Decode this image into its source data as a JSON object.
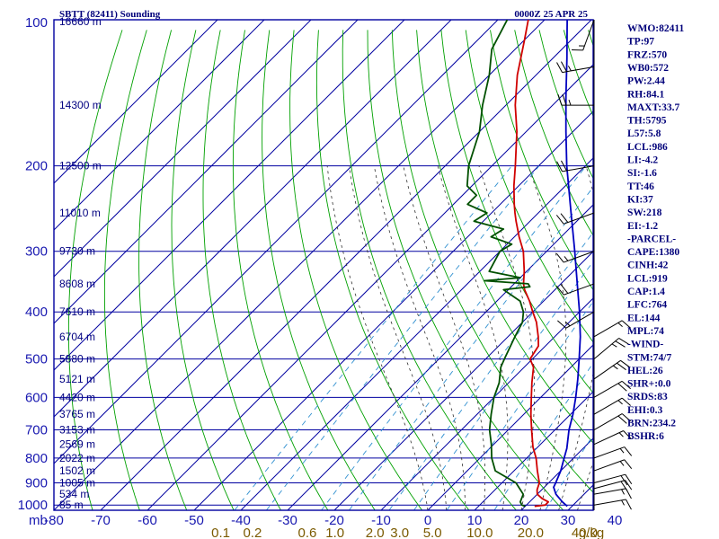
{
  "header": {
    "station": "SBTT (82411) Sounding",
    "time": "0000Z 25 APR 25"
  },
  "indices": [
    "WMO:82411",
    "TP:97",
    "FRZ:570",
    "WB0:572",
    "PW:2.44",
    "RH:84.1",
    "MAXT:33.7",
    "TH:5795",
    "L57:5.8",
    "LCL:986",
    "LI:-4.2",
    "SI:-1.6",
    "TT:46",
    "KI:37",
    "SW:218",
    "EI:-1.2",
    "-PARCEL-",
    "CAPE:1380",
    "CINH:42",
    "LCL:919",
    "CAP:1.4",
    "LFC:764",
    "EL:144",
    "MPL:74",
    "-WIND-",
    "STM:74/7",
    "HEL:26",
    "SHR+:0.0",
    "SRDS:83",
    "EHI:0.3",
    "BRN:234.2",
    "BSHR:6"
  ],
  "colors": {
    "isobar": "#0000a0",
    "isotherm": "#0000a0",
    "dry_adiabat": "#00a000",
    "moist_adiabat": "#303030",
    "mixing_ratio": "#3090d0",
    "temperature": "#d00000",
    "dewpoint": "#005000",
    "parcel": "#0000c0",
    "wind_barb": "#000000"
  },
  "chart_data": {
    "type": "skew-t log-p sounding",
    "x_axis_unit_label": "mb",
    "temperature_ticks": [
      -80,
      -70,
      -60,
      -50,
      -40,
      -30,
      -20,
      -10,
      0,
      10,
      20,
      30,
      40
    ],
    "temperature_tick_labels": [
      "-80",
      "-70",
      "-60",
      "-50",
      "-40",
      "-30",
      "-20",
      "-10",
      "0",
      "10",
      "20",
      "30",
      "40"
    ],
    "pressure_levels": [
      100,
      200,
      300,
      400,
      500,
      600,
      700,
      800,
      900,
      1000
    ],
    "pressure_labels": [
      "100",
      "200",
      "300",
      "400",
      "500",
      "600",
      "700",
      "800",
      "900",
      "1000"
    ],
    "height_labels": [
      {
        "p": 100,
        "label": "16660 m"
      },
      {
        "p": 150,
        "label": "14300 m"
      },
      {
        "p": 200,
        "label": "12500 m"
      },
      {
        "p": 250,
        "label": "11010 m"
      },
      {
        "p": 300,
        "label": "9730 m"
      },
      {
        "p": 350,
        "label": "8608 m"
      },
      {
        "p": 400,
        "label": "7610 m"
      },
      {
        "p": 450,
        "label": "6704 m"
      },
      {
        "p": 500,
        "label": "5880 m"
      },
      {
        "p": 550,
        "label": "5121 m"
      },
      {
        "p": 600,
        "label": "4420 m"
      },
      {
        "p": 650,
        "label": "3765 m"
      },
      {
        "p": 700,
        "label": "3153 m"
      },
      {
        "p": 750,
        "label": "2569 m"
      },
      {
        "p": 800,
        "label": "2022 m"
      },
      {
        "p": 850,
        "label": "1502 m"
      },
      {
        "p": 900,
        "label": "1005 m"
      },
      {
        "p": 950,
        "label": "534 m"
      },
      {
        "p": 1000,
        "label": "85 m"
      }
    ],
    "mixing_ratio_labels": [
      "0.1",
      "0.2",
      "0.6",
      "1.0",
      "2.0",
      "3.0",
      "5.0",
      "10.0",
      "20.0",
      "40.0"
    ],
    "mixing_ratio_unit": "g/kg",
    "series": [
      {
        "key": "temperature",
        "points": [
          [
            1006,
            22
          ],
          [
            1000,
            24
          ],
          [
            985,
            24
          ],
          [
            970,
            22
          ],
          [
            950,
            20
          ],
          [
            930,
            19
          ],
          [
            900,
            18
          ],
          [
            850,
            15
          ],
          [
            800,
            12
          ],
          [
            760,
            9
          ],
          [
            700,
            5
          ],
          [
            650,
            1.5
          ],
          [
            600,
            -2
          ],
          [
            560,
            -5
          ],
          [
            520,
            -8
          ],
          [
            500,
            -10.5
          ],
          [
            470,
            -11.5
          ],
          [
            450,
            -13.5
          ],
          [
            420,
            -17
          ],
          [
            400,
            -20
          ],
          [
            380,
            -23
          ],
          [
            360,
            -26.5
          ],
          [
            350,
            -28
          ],
          [
            330,
            -30.5
          ],
          [
            300,
            -35
          ],
          [
            280,
            -39
          ],
          [
            260,
            -43
          ],
          [
            250,
            -45
          ],
          [
            240,
            -47
          ],
          [
            220,
            -51
          ],
          [
            200,
            -55
          ],
          [
            170,
            -62
          ],
          [
            150,
            -68
          ],
          [
            130,
            -74
          ],
          [
            110,
            -80
          ],
          [
            100,
            -83.5
          ]
        ]
      },
      {
        "key": "dewpoint",
        "points": [
          [
            1006,
            20
          ],
          [
            1000,
            19
          ],
          [
            985,
            18
          ],
          [
            950,
            17
          ],
          [
            900,
            13
          ],
          [
            850,
            6
          ],
          [
            800,
            2.5
          ],
          [
            750,
            -0.5
          ],
          [
            700,
            -4
          ],
          [
            650,
            -7
          ],
          [
            600,
            -10
          ],
          [
            560,
            -12
          ],
          [
            520,
            -15
          ],
          [
            500,
            -16
          ],
          [
            450,
            -18.5
          ],
          [
            420,
            -20
          ],
          [
            400,
            -22
          ],
          [
            380,
            -25
          ],
          [
            360,
            -31
          ],
          [
            355,
            -26
          ],
          [
            350,
            -27
          ],
          [
            345,
            -37
          ],
          [
            340,
            -30
          ],
          [
            330,
            -38
          ],
          [
            300,
            -40
          ],
          [
            290,
            -39
          ],
          [
            280,
            -45
          ],
          [
            270,
            -44
          ],
          [
            260,
            -52
          ],
          [
            250,
            -51
          ],
          [
            240,
            -57
          ],
          [
            230,
            -57
          ],
          [
            220,
            -61
          ],
          [
            200,
            -65
          ],
          [
            170,
            -70
          ],
          [
            150,
            -75
          ],
          [
            130,
            -80
          ],
          [
            115,
            -85
          ],
          [
            100,
            -88
          ]
        ]
      },
      {
        "key": "parcel",
        "points": [
          [
            1006,
            29
          ],
          [
            985,
            27
          ],
          [
            950,
            24
          ],
          [
            919,
            22
          ],
          [
            900,
            21.5
          ],
          [
            850,
            20
          ],
          [
            800,
            18
          ],
          [
            764,
            16.5
          ],
          [
            700,
            13
          ],
          [
            650,
            10.5
          ],
          [
            600,
            7.5
          ],
          [
            550,
            4
          ],
          [
            500,
            0
          ],
          [
            450,
            -4.5
          ],
          [
            400,
            -10
          ],
          [
            350,
            -16.5
          ],
          [
            300,
            -24
          ],
          [
            250,
            -33
          ],
          [
            200,
            -44
          ],
          [
            170,
            -51.5
          ],
          [
            144,
            -59
          ],
          [
            120,
            -67
          ],
          [
            105,
            -73
          ],
          [
            96,
            -77
          ]
        ]
      }
    ],
    "wind_barbs": [
      {
        "p": 1000,
        "dir": 80,
        "spd": 15
      },
      {
        "p": 950,
        "dir": 80,
        "spd": 15
      },
      {
        "p": 925,
        "dir": 75,
        "spd": 20
      },
      {
        "p": 900,
        "dir": 75,
        "spd": 20
      },
      {
        "p": 850,
        "dir": 70,
        "spd": 15
      },
      {
        "p": 800,
        "dir": 70,
        "spd": 15
      },
      {
        "p": 750,
        "dir": 65,
        "spd": 15
      },
      {
        "p": 700,
        "dir": 60,
        "spd": 20
      },
      {
        "p": 650,
        "dir": 60,
        "spd": 15
      },
      {
        "p": 600,
        "dir": 60,
        "spd": 20
      },
      {
        "p": 550,
        "dir": 55,
        "spd": 25
      },
      {
        "p": 500,
        "dir": 50,
        "spd": 25
      },
      {
        "p": 450,
        "dir": 60,
        "spd": 15
      },
      {
        "p": 400,
        "dir": 240,
        "spd": 15
      },
      {
        "p": 350,
        "dir": 250,
        "spd": 20
      },
      {
        "p": 300,
        "dir": 250,
        "spd": 15
      },
      {
        "p": 250,
        "dir": 250,
        "spd": 20
      },
      {
        "p": 200,
        "dir": 260,
        "spd": 20
      },
      {
        "p": 150,
        "dir": 270,
        "spd": 25
      },
      {
        "p": 125,
        "dir": 260,
        "spd": 25
      },
      {
        "p": 100,
        "dir": 200,
        "spd": 15
      }
    ]
  }
}
